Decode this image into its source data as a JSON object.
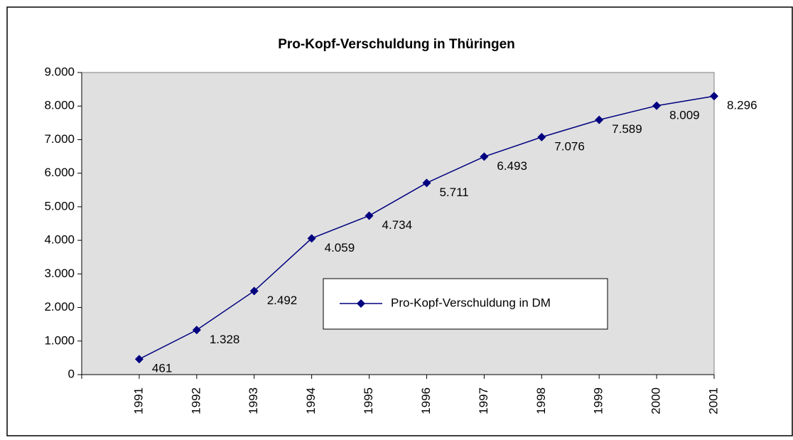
{
  "chart_data": {
    "type": "line",
    "title": "Pro-Kopf-Verschuldung in Thüringen",
    "categories": [
      "1991",
      "1992",
      "1993",
      "1994",
      "1995",
      "1996",
      "1997",
      "1998",
      "1999",
      "2000",
      "2001"
    ],
    "series": [
      {
        "name": "Pro-Kopf-Verschuldung in DM",
        "color": "#000080",
        "values": [
          461,
          1328,
          2492,
          4059,
          4734,
          5711,
          6493,
          7076,
          7589,
          8009,
          8296
        ],
        "value_labels": [
          "461",
          "1.328",
          "2.492",
          "4.059",
          "4.734",
          "5.711",
          "6.493",
          "7.076",
          "7.589",
          "8.009",
          "8.296"
        ]
      }
    ],
    "ylim": [
      0,
      9000
    ],
    "yticks": [
      0,
      {
        "value": 1000,
        "label": "1.000"
      },
      {
        "value": 2000,
        "label": "2.000"
      },
      {
        "value": 3000,
        "label": "3.000"
      },
      {
        "value": 4000,
        "label": "4.000"
      },
      {
        "value": 5000,
        "label": "5.000"
      },
      {
        "value": 6000,
        "label": "6.000"
      },
      {
        "value": 7000,
        "label": "7.000"
      },
      {
        "value": 8000,
        "label": "8.000"
      },
      {
        "value": 9000,
        "label": "9.000"
      }
    ],
    "plot_background": "#e0e0e0"
  }
}
